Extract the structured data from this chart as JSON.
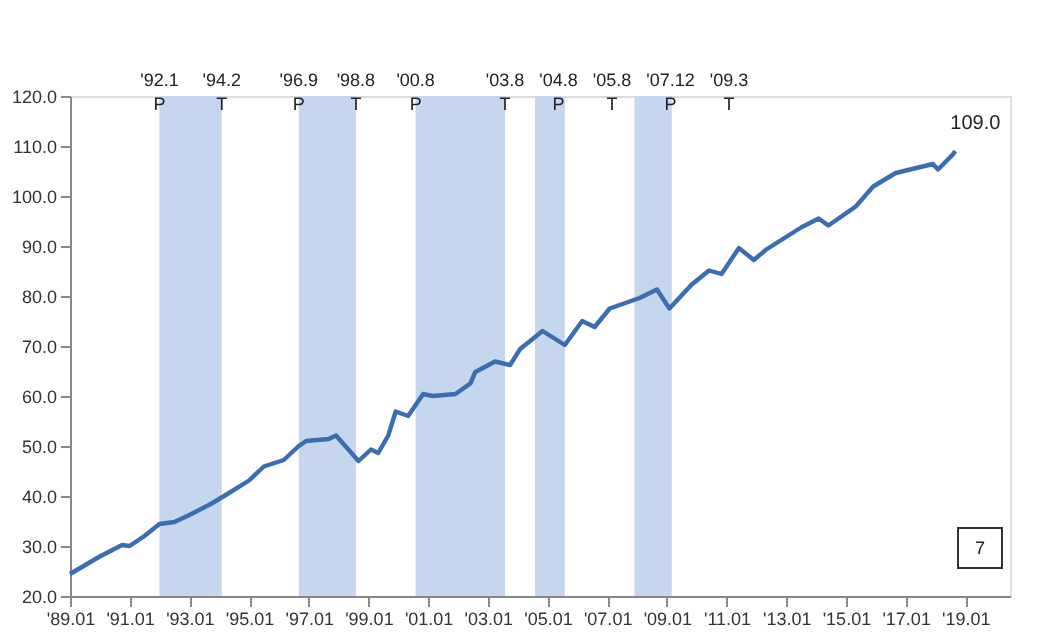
{
  "chart_data": {
    "type": "line",
    "series": [
      {
        "color": "#3a6eb0",
        "x": [
          "1989-01",
          "1990-01",
          "1990-10",
          "1991-01",
          "1991-07",
          "1992-01",
          "1992-07",
          "1993-01",
          "1993-10",
          "1994-04",
          "1995-01",
          "1995-07",
          "1996-03",
          "1996-09",
          "1996-12",
          "1997-09",
          "1997-12",
          "1998-05",
          "1998-09",
          "1999-02",
          "1999-05",
          "1999-09",
          "1999-12",
          "2000-05",
          "2000-11",
          "2001-03",
          "2001-12",
          "2002-06",
          "2002-08",
          "2003-04",
          "2003-10",
          "2004-02",
          "2004-11",
          "2005-08",
          "2006-03",
          "2006-08",
          "2007-02",
          "2008-02",
          "2008-09",
          "2009-02",
          "2009-11",
          "2010-06",
          "2010-11",
          "2011-06",
          "2011-12",
          "2012-05",
          "2013-07",
          "2014-02",
          "2014-06",
          "2015-05",
          "2015-12",
          "2016-09",
          "2017-12",
          "2018-02",
          "2018-08",
          "2018-09"
        ],
        "values": [
          24.4,
          27.9,
          30.2,
          30.0,
          32.0,
          34.4,
          34.8,
          36.2,
          38.5,
          40.3,
          43.1,
          45.9,
          47.2,
          50.0,
          51.0,
          51.4,
          52.1,
          49.3,
          47.0,
          49.3,
          48.6,
          52.1,
          56.9,
          56.0,
          60.4,
          60.0,
          60.4,
          62.5,
          64.8,
          66.9,
          66.2,
          69.4,
          73.0,
          70.2,
          75.0,
          73.8,
          77.5,
          79.6,
          81.3,
          77.5,
          82.3,
          85.1,
          84.4,
          89.6,
          87.2,
          89.3,
          93.7,
          95.5,
          94.1,
          97.9,
          101.9,
          104.6,
          106.4,
          105.3,
          108.3,
          109.0
        ]
      }
    ],
    "xlim": [
      "1989-01",
      "2020-07"
    ],
    "xticks": [
      {
        "value": "1989-01",
        "label": "'89.01"
      },
      {
        "value": "1991-01",
        "label": "'91.01"
      },
      {
        "value": "1993-01",
        "label": "'93.01"
      },
      {
        "value": "1995-01",
        "label": "'95.01"
      },
      {
        "value": "1997-01",
        "label": "'97.01"
      },
      {
        "value": "1999-01",
        "label": "'99.01"
      },
      {
        "value": "2001-01",
        "label": "'01.01"
      },
      {
        "value": "2003-01",
        "label": "'03.01"
      },
      {
        "value": "2005-01",
        "label": "'05.01"
      },
      {
        "value": "2007-01",
        "label": "'07.01"
      },
      {
        "value": "2009-01",
        "label": "'09.01"
      },
      {
        "value": "2011-01",
        "label": "'11.01"
      },
      {
        "value": "2013-01",
        "label": "'13.01"
      },
      {
        "value": "2015-01",
        "label": "'15.01"
      },
      {
        "value": "2017-01",
        "label": "'17.01"
      },
      {
        "value": "2019-01",
        "label": "'19.01"
      }
    ],
    "ylim": [
      20,
      120
    ],
    "yticks": [
      {
        "value": 20,
        "label": "20.0"
      },
      {
        "value": 30,
        "label": "30.0"
      },
      {
        "value": 40,
        "label": "40.0"
      },
      {
        "value": 50,
        "label": "50.0"
      },
      {
        "value": 60,
        "label": "60.0"
      },
      {
        "value": 70,
        "label": "70.0"
      },
      {
        "value": 80,
        "label": "80.0"
      },
      {
        "value": 90,
        "label": "90.0"
      },
      {
        "value": 100,
        "label": "100.0"
      },
      {
        "value": 110,
        "label": "110.0"
      },
      {
        "value": 120,
        "label": "120.0"
      }
    ],
    "bands": [
      {
        "axis": "x",
        "from": "1992-01",
        "to": "1994-02",
        "color": "#c6d6ee"
      },
      {
        "axis": "x",
        "from": "1996-09",
        "to": "1998-08",
        "color": "#c6d6ee"
      },
      {
        "axis": "x",
        "from": "2000-08",
        "to": "2003-08",
        "color": "#c6d6ee"
      },
      {
        "axis": "x",
        "from": "2004-08",
        "to": "2005-08",
        "color": "#c6d6ee"
      },
      {
        "axis": "x",
        "from": "2007-12",
        "to": "2009-03",
        "color": "#c6d6ee"
      }
    ],
    "annotations": [
      "'92.1\nP",
      "'94.2\nT",
      "'96.9\nP",
      "'98.8\nT",
      "'00.8\nP",
      "'03.8\nT",
      "'04.8\nP",
      "'05.8\nT",
      "'07.12\nP",
      "'09.3\nT",
      {
        "text": "109.0",
        "x": "2018-09",
        "y": 109.0
      },
      "7"
    ],
    "grid": false,
    "line_style": "solid",
    "marker": "none"
  }
}
